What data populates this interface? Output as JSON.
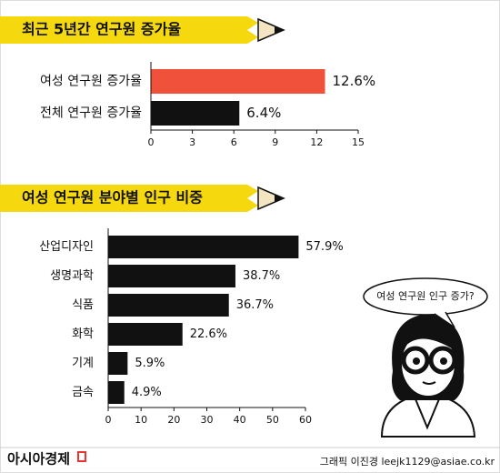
{
  "chart_data": [
    {
      "type": "bar",
      "orientation": "horizontal",
      "title": "최근 5년간 연구원 증가율",
      "categories": [
        "여성 연구원 증가율",
        "전체 연구원 증가율"
      ],
      "values": [
        12.6,
        6.4
      ],
      "value_labels": [
        "12.6%",
        "6.4%"
      ],
      "colors": [
        "#f0513a",
        "#111111"
      ],
      "label_colors": [
        "#f0513a",
        "#111111"
      ],
      "xlim": [
        0,
        15
      ],
      "xticks": [
        0,
        3,
        6,
        9,
        12,
        15
      ]
    },
    {
      "type": "bar",
      "orientation": "horizontal",
      "title": "여성 연구원 분야별 인구 비중",
      "categories": [
        "산업디자인",
        "생명과학",
        "식품",
        "화학",
        "기계",
        "금속"
      ],
      "values": [
        57.9,
        38.7,
        36.7,
        22.6,
        5.9,
        4.9
      ],
      "value_labels": [
        "57.9%",
        "38.7%",
        "36.7%",
        "22.6%",
        "5.9%",
        "4.9%"
      ],
      "color": "#111111",
      "value_label_color": "#4a3520",
      "xlim": [
        0,
        60
      ],
      "xticks": [
        0,
        10,
        20,
        30,
        40,
        50,
        60
      ],
      "annotation": "여성 연구원 인구 증가?"
    }
  ],
  "footer": {
    "brand": "아시아경제",
    "credit": "그래픽 이진경 leejk1129@asiae.co.kr"
  }
}
